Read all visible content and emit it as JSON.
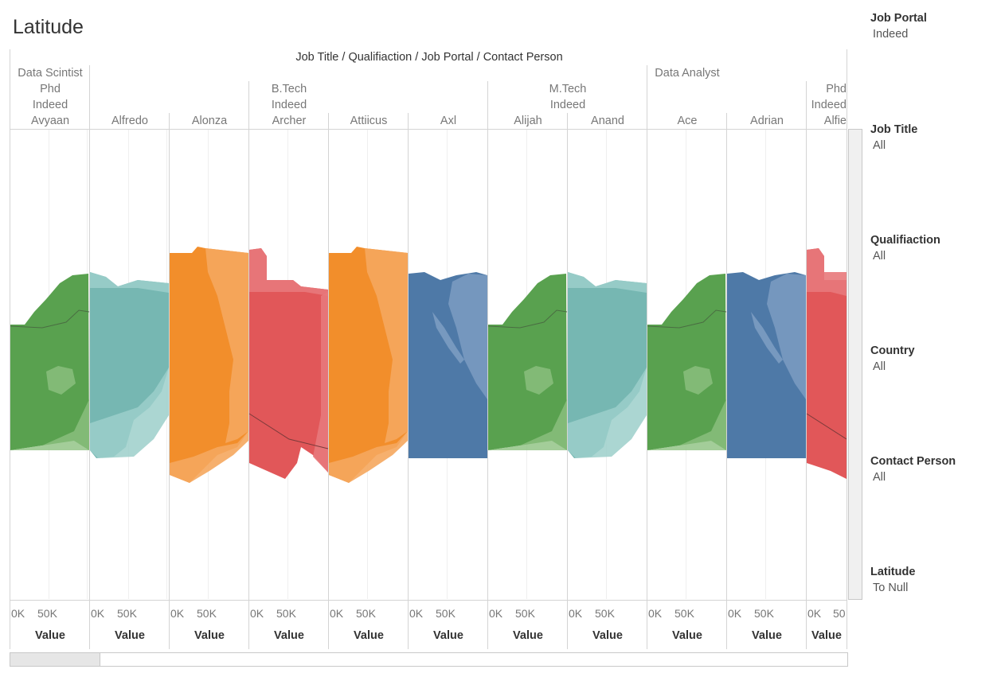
{
  "title": "Latitude",
  "header_caption": "Job Title  /  Qualifiaction  /  Job Portal  /  Contact Person",
  "header_groups": {
    "job_titles": [
      "Data Scintist",
      "Data Analyst"
    ],
    "qualifications": [
      "Phd",
      "B.Tech",
      "M.Tech",
      "Phd"
    ],
    "job_portals": [
      "Indeed",
      "Indeed",
      "Indeed",
      "Indeed"
    ]
  },
  "columns": [
    {
      "person": "Avyaan",
      "color": "#59a14f"
    },
    {
      "person": "Alfredo",
      "color": "#76b7b2"
    },
    {
      "person": "Alonza",
      "color": "#f28e2b"
    },
    {
      "person": "Archer",
      "color": "#e15759"
    },
    {
      "person": "Attiicus",
      "color": "#f28e2b"
    },
    {
      "person": "Axl",
      "color": "#4e79a7"
    },
    {
      "person": "Alijah",
      "color": "#59a14f"
    },
    {
      "person": "Anand",
      "color": "#76b7b2"
    },
    {
      "person": "Ace",
      "color": "#59a14f"
    },
    {
      "person": "Adrian",
      "color": "#4e79a7"
    },
    {
      "person": "Alfie",
      "color": "#e15759"
    }
  ],
  "axis": {
    "tick_labels": [
      "0K",
      "50K"
    ],
    "last_tick_label": "50",
    "title": "Value"
  },
  "filters": [
    {
      "title": "Job Portal",
      "value": "Indeed"
    },
    {
      "title": "Job Title",
      "value": "All"
    },
    {
      "title": "Qualifiaction",
      "value": "All"
    },
    {
      "title": "Country",
      "value": "All"
    },
    {
      "title": "Contact Person",
      "value": "All"
    },
    {
      "title": "Latitude",
      "value": "To Null"
    }
  ]
}
